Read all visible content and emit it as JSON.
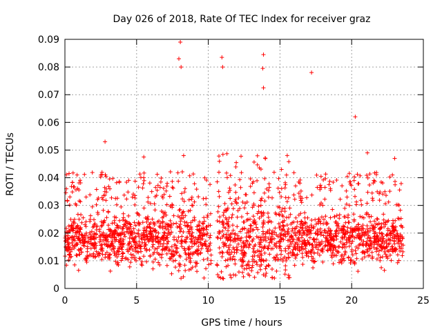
{
  "chart_data": {
    "type": "scatter",
    "title": "Day 026 of 2018, Rate Of TEC Index for receiver graz",
    "xlabel": "GPS time / hours",
    "ylabel": "ROTI / TECUs",
    "xlim": [
      0,
      25
    ],
    "ylim": [
      0,
      0.09
    ],
    "x_ticks": [
      "0",
      "5",
      "10",
      "15",
      "20",
      "25"
    ],
    "y_ticks": [
      "0",
      "0.01",
      "0.02",
      "0.03",
      "0.04",
      "0.05",
      "0.06",
      "0.07",
      "0.08",
      "0.09"
    ],
    "grid": true,
    "marker": "+",
    "color": "#ff0000",
    "data_gap_hours": [
      10.2,
      10.6
    ],
    "x_range_of_points": [
      0,
      23.6
    ],
    "notable_points": [
      {
        "x": 8.05,
        "y": 0.089
      },
      {
        "x": 7.95,
        "y": 0.083
      },
      {
        "x": 8.1,
        "y": 0.08
      },
      {
        "x": 10.95,
        "y": 0.0835
      },
      {
        "x": 11.0,
        "y": 0.08
      },
      {
        "x": 13.85,
        "y": 0.0845
      },
      {
        "x": 13.8,
        "y": 0.0795
      },
      {
        "x": 13.85,
        "y": 0.0725
      },
      {
        "x": 17.2,
        "y": 0.078
      },
      {
        "x": 20.25,
        "y": 0.062
      },
      {
        "x": 2.8,
        "y": 0.053
      },
      {
        "x": 5.5,
        "y": 0.0475
      },
      {
        "x": 21.1,
        "y": 0.049
      },
      {
        "x": 23.0,
        "y": 0.047
      }
    ],
    "background_density_band": [
      0.006,
      0.03
    ]
  }
}
